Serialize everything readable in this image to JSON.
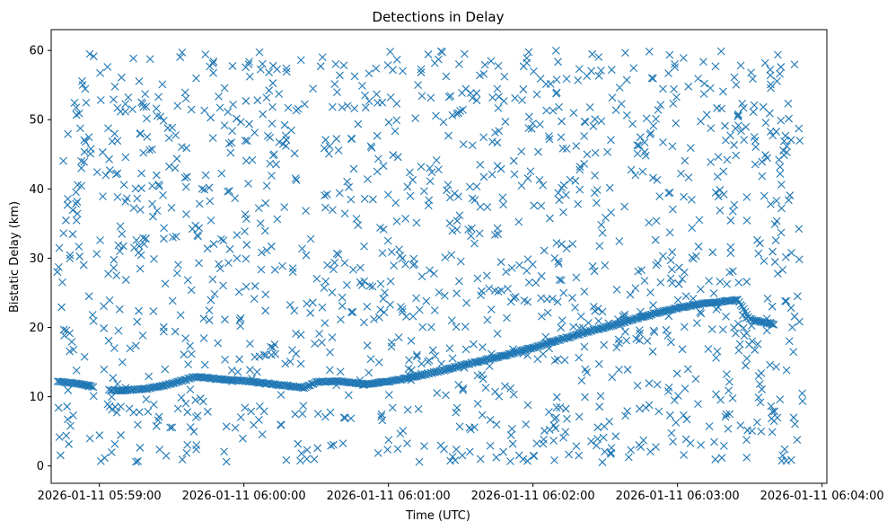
{
  "chart_data": {
    "type": "scatter",
    "title": "Detections in Delay",
    "xlabel": "Time (UTC)",
    "ylabel": "Bistatic Delay (km)",
    "marker": "x",
    "series_color": "#1f77b4",
    "x_unit": "seconds after 2026-01-11 05:59:00",
    "xlim": [
      -20,
      302
    ],
    "ylim": [
      -2.5,
      63
    ],
    "xticks": [
      {
        "value": 0,
        "label": "2026-01-11 05:59:00"
      },
      {
        "value": 60,
        "label": "2026-01-11 06:00:00"
      },
      {
        "value": 120,
        "label": "2026-01-11 06:01:00"
      },
      {
        "value": 180,
        "label": "2026-01-11 06:02:00"
      },
      {
        "value": 240,
        "label": "2026-01-11 06:03:00"
      },
      {
        "value": 300,
        "label": "2026-01-11 06:04:00"
      }
    ],
    "yticks": [
      {
        "value": 0,
        "label": "0"
      },
      {
        "value": 10,
        "label": "10"
      },
      {
        "value": 20,
        "label": "20"
      },
      {
        "value": 30,
        "label": "30"
      },
      {
        "value": 40,
        "label": "40"
      },
      {
        "value": 50,
        "label": "50"
      },
      {
        "value": 60,
        "label": "60"
      }
    ],
    "track": [
      {
        "x": -17.3,
        "y": 12.2
      },
      {
        "x": -14.5,
        "y": 12.1
      },
      {
        "x": -12,
        "y": 12.0
      },
      {
        "x": -9.5,
        "y": 11.9
      },
      {
        "x": -7,
        "y": 11.8
      },
      {
        "x": -4.5,
        "y": 11.6
      },
      {
        "x": -2.5,
        "y": 11.4
      },
      {
        "x": 4,
        "y": 11.0
      },
      {
        "x": 8,
        "y": 10.9
      },
      {
        "x": 14,
        "y": 11.0
      },
      {
        "x": 20,
        "y": 11.2
      },
      {
        "x": 25,
        "y": 11.5
      },
      {
        "x": 30,
        "y": 11.9
      },
      {
        "x": 35,
        "y": 12.4
      },
      {
        "x": 40,
        "y": 12.9
      },
      {
        "x": 45,
        "y": 12.7
      },
      {
        "x": 50,
        "y": 12.5
      },
      {
        "x": 55,
        "y": 12.4
      },
      {
        "x": 60,
        "y": 12.3
      },
      {
        "x": 65,
        "y": 12.1
      },
      {
        "x": 70,
        "y": 11.9
      },
      {
        "x": 75,
        "y": 11.7
      },
      {
        "x": 80,
        "y": 11.5
      },
      {
        "x": 85,
        "y": 11.3
      },
      {
        "x": 90,
        "y": 12.1
      },
      {
        "x": 95,
        "y": 12.2
      },
      {
        "x": 100,
        "y": 12.2
      },
      {
        "x": 105,
        "y": 12.0
      },
      {
        "x": 110,
        "y": 11.8
      },
      {
        "x": 115,
        "y": 12.0
      },
      {
        "x": 120,
        "y": 12.2
      },
      {
        "x": 125,
        "y": 12.5
      },
      {
        "x": 130,
        "y": 12.8
      },
      {
        "x": 135,
        "y": 13.2
      },
      {
        "x": 140,
        "y": 13.6
      },
      {
        "x": 145,
        "y": 14.0
      },
      {
        "x": 150,
        "y": 14.5
      },
      {
        "x": 155,
        "y": 14.9
      },
      {
        "x": 160,
        "y": 15.3
      },
      {
        "x": 165,
        "y": 15.7
      },
      {
        "x": 170,
        "y": 16.1
      },
      {
        "x": 175,
        "y": 16.6
      },
      {
        "x": 180,
        "y": 17.1
      },
      {
        "x": 185,
        "y": 17.6
      },
      {
        "x": 190,
        "y": 18.1
      },
      {
        "x": 195,
        "y": 18.6
      },
      {
        "x": 200,
        "y": 19.1
      },
      {
        "x": 205,
        "y": 19.6
      },
      {
        "x": 210,
        "y": 20.0
      },
      {
        "x": 215,
        "y": 20.5
      },
      {
        "x": 220,
        "y": 21.0
      },
      {
        "x": 225,
        "y": 21.5
      },
      {
        "x": 230,
        "y": 22.0
      },
      {
        "x": 235,
        "y": 22.4
      },
      {
        "x": 240,
        "y": 22.8
      },
      {
        "x": 245,
        "y": 23.1
      },
      {
        "x": 250,
        "y": 23.4
      },
      {
        "x": 255,
        "y": 23.6
      },
      {
        "x": 260,
        "y": 23.8
      },
      {
        "x": 265,
        "y": 24.0
      },
      {
        "x": 270,
        "y": 21.2
      },
      {
        "x": 272.5,
        "y": 21.0
      },
      {
        "x": 275,
        "y": 20.8
      },
      {
        "x": 277.5,
        "y": 20.6
      },
      {
        "x": 280,
        "y": 20.4
      }
    ],
    "noise_count": 1400,
    "noise_x_range": [
      -17.5,
      292
    ],
    "noise_y_range": [
      0.5,
      60
    ]
  }
}
